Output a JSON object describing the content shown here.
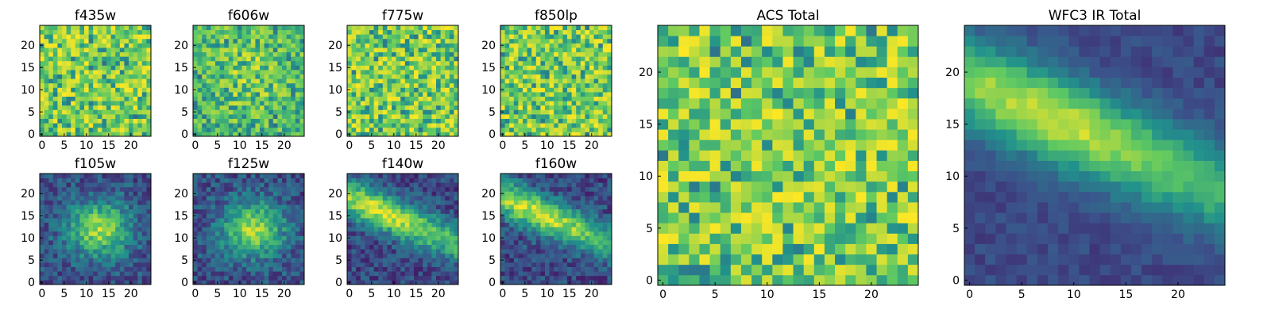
{
  "figure": {
    "colormap": "viridis",
    "colormap_stops": [
      "#440154",
      "#3b528b",
      "#21918c",
      "#5ec962",
      "#fde725"
    ]
  },
  "chart_data": [
    {
      "type": "heatmap",
      "title": "f435w",
      "grid_size": 25,
      "xticks": [
        0,
        5,
        10,
        15,
        20
      ],
      "yticks": [
        0,
        5,
        10,
        15,
        20
      ],
      "xlim": [
        0,
        24
      ],
      "ylim": [
        0,
        24
      ],
      "pattern": "noise",
      "noise_seed": 11
    },
    {
      "type": "heatmap",
      "title": "f606w",
      "grid_size": 25,
      "xticks": [
        0,
        5,
        10,
        15,
        20
      ],
      "yticks": [
        0,
        5,
        10,
        15,
        20
      ],
      "xlim": [
        0,
        24
      ],
      "ylim": [
        0,
        24
      ],
      "pattern": "noise-weak-blob",
      "noise_seed": 23
    },
    {
      "type": "heatmap",
      "title": "f775w",
      "grid_size": 25,
      "xticks": [
        0,
        5,
        10,
        15,
        20
      ],
      "yticks": [
        0,
        5,
        10,
        15,
        20
      ],
      "xlim": [
        0,
        24
      ],
      "ylim": [
        0,
        24
      ],
      "pattern": "noise",
      "noise_seed": 37
    },
    {
      "type": "heatmap",
      "title": "f850lp",
      "grid_size": 25,
      "xticks": [
        0,
        5,
        10,
        15,
        20
      ],
      "yticks": [
        0,
        5,
        10,
        15,
        20
      ],
      "xlim": [
        0,
        24
      ],
      "ylim": [
        0,
        24
      ],
      "pattern": "noise",
      "noise_seed": 41
    },
    {
      "type": "heatmap",
      "title": "f105w",
      "grid_size": 25,
      "xticks": [
        0,
        5,
        10,
        15,
        20
      ],
      "yticks": [
        0,
        5,
        10,
        15,
        20
      ],
      "xlim": [
        0,
        24
      ],
      "ylim": [
        0,
        24
      ],
      "pattern": "blob",
      "noise_seed": 53
    },
    {
      "type": "heatmap",
      "title": "f125w",
      "grid_size": 25,
      "xticks": [
        0,
        5,
        10,
        15,
        20
      ],
      "yticks": [
        0,
        5,
        10,
        15,
        20
      ],
      "xlim": [
        0,
        24
      ],
      "ylim": [
        0,
        24
      ],
      "pattern": "blob",
      "noise_seed": 67
    },
    {
      "type": "heatmap",
      "title": "f140w",
      "grid_size": 25,
      "xticks": [
        0,
        5,
        10,
        15,
        20
      ],
      "yticks": [
        0,
        5,
        10,
        15,
        20
      ],
      "xlim": [
        0,
        24
      ],
      "ylim": [
        0,
        24
      ],
      "pattern": "diagonal-band",
      "noise_seed": 71
    },
    {
      "type": "heatmap",
      "title": "f160w",
      "grid_size": 25,
      "xticks": [
        0,
        5,
        10,
        15,
        20
      ],
      "yticks": [
        0,
        5,
        10,
        15,
        20
      ],
      "xlim": [
        0,
        24
      ],
      "ylim": [
        0,
        24
      ],
      "pattern": "diagonal-band",
      "noise_seed": 83
    },
    {
      "type": "heatmap",
      "title": "ACS Total",
      "grid_size": 25,
      "xticks": [
        0,
        5,
        10,
        15,
        20
      ],
      "yticks": [
        0,
        5,
        10,
        15,
        20
      ],
      "xlim": [
        0,
        24
      ],
      "ylim": [
        0,
        24
      ],
      "pattern": "noise",
      "noise_seed": 97
    },
    {
      "type": "heatmap",
      "title": "WFC3 IR Total",
      "grid_size": 25,
      "xticks": [
        0,
        5,
        10,
        15,
        20
      ],
      "yticks": [
        0,
        5,
        10,
        15,
        20
      ],
      "xlim": [
        0,
        24
      ],
      "ylim": [
        0,
        24
      ],
      "pattern": "diagonal-band-smooth",
      "noise_seed": 101
    }
  ]
}
